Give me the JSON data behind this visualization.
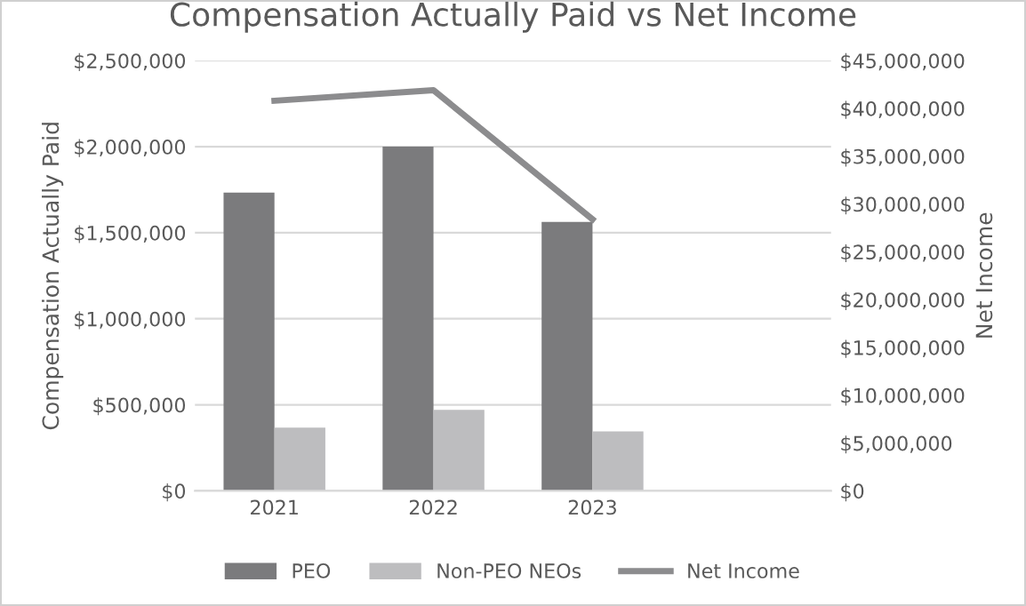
{
  "chart_data": {
    "type": "bar",
    "title": "Compensation Actually Paid vs Net Income",
    "ylabel": "Compensation Actually Paid",
    "y2label": "Net Income",
    "categories": [
      "2021",
      "2022",
      "2023",
      null
    ],
    "series": [
      {
        "name": "PEO",
        "color": "#7b7b7d",
        "values": [
          1733000,
          2000000,
          1563000,
          null
        ]
      },
      {
        "name": "Non-PEO NEOs",
        "color": "#bdbdbf",
        "values": [
          367000,
          471000,
          346000,
          null
        ]
      },
      {
        "name": "Net Income",
        "type": "line",
        "axis": "y2",
        "color": "#8c8c8e",
        "values": [
          40800000,
          41900000,
          28400000,
          null
        ]
      }
    ],
    "ylim": [
      0,
      2500000
    ],
    "yticks": [
      {
        "value": 0,
        "label": "$0"
      },
      {
        "value": 500000,
        "label": "$500,000"
      },
      {
        "value": 1000000,
        "label": "$1,000,000"
      },
      {
        "value": 1500000,
        "label": "$1,500,000"
      },
      {
        "value": 2000000,
        "label": "$2,000,000"
      },
      {
        "value": 2500000,
        "label": "$2,500,000"
      }
    ],
    "y2lim": [
      0,
      45000000
    ],
    "y2ticks": [
      {
        "value": 0,
        "label": "$0"
      },
      {
        "value": 5000000,
        "label": "$5,000,000"
      },
      {
        "value": 10000000,
        "label": "$10,000,000"
      },
      {
        "value": 15000000,
        "label": "$15,000,000"
      },
      {
        "value": 20000000,
        "label": "$20,000,000"
      },
      {
        "value": 25000000,
        "label": "$25,000,000"
      },
      {
        "value": 30000000,
        "label": "$30,000,000"
      },
      {
        "value": 35000000,
        "label": "$35,000,000"
      },
      {
        "value": 40000000,
        "label": "$40,000,000"
      },
      {
        "value": 45000000,
        "label": "$45,000,000"
      }
    ],
    "grid": "y",
    "legend": "bottom"
  }
}
